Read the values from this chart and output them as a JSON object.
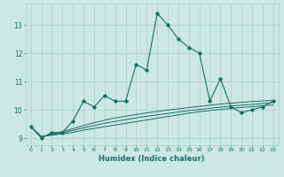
{
  "xlabel": "Humidex (Indice chaleur)",
  "background_color": "#cce8e4",
  "grid_color": "#aaceca",
  "line_color": "#1a6e64",
  "x_values": [
    0,
    1,
    2,
    3,
    4,
    5,
    6,
    7,
    8,
    9,
    10,
    11,
    12,
    13,
    14,
    15,
    16,
    17,
    18,
    19,
    20,
    21,
    22,
    23
  ],
  "main_series": [
    9.4,
    9.0,
    9.2,
    9.2,
    9.6,
    10.3,
    10.1,
    10.5,
    10.3,
    10.3,
    11.6,
    11.4,
    13.4,
    13.0,
    12.5,
    12.2,
    12.0,
    10.3,
    11.1,
    10.1,
    9.9,
    10.0,
    10.1,
    10.3
  ],
  "smooth1": [
    9.4,
    9.05,
    9.1,
    9.15,
    9.2,
    9.28,
    9.34,
    9.4,
    9.46,
    9.52,
    9.58,
    9.64,
    9.7,
    9.76,
    9.82,
    9.88,
    9.93,
    9.97,
    10.01,
    10.05,
    10.08,
    10.11,
    10.14,
    10.17
  ],
  "smooth2": [
    9.4,
    9.05,
    9.12,
    9.19,
    9.27,
    9.36,
    9.44,
    9.52,
    9.59,
    9.65,
    9.71,
    9.77,
    9.82,
    9.87,
    9.92,
    9.97,
    10.01,
    10.05,
    10.09,
    10.13,
    10.16,
    10.19,
    10.22,
    10.25
  ],
  "smooth3": [
    9.4,
    9.05,
    9.14,
    9.23,
    9.33,
    9.44,
    9.54,
    9.63,
    9.71,
    9.77,
    9.83,
    9.89,
    9.94,
    9.99,
    10.03,
    10.08,
    10.12,
    10.16,
    10.2,
    10.23,
    10.26,
    10.29,
    10.31,
    10.33
  ],
  "ylim": [
    8.75,
    13.75
  ],
  "yticks": [
    9,
    10,
    11,
    12,
    13
  ],
  "xticks": [
    0,
    1,
    2,
    3,
    4,
    5,
    6,
    7,
    8,
    9,
    10,
    11,
    12,
    13,
    14,
    15,
    16,
    17,
    18,
    19,
    20,
    21,
    22,
    23
  ]
}
